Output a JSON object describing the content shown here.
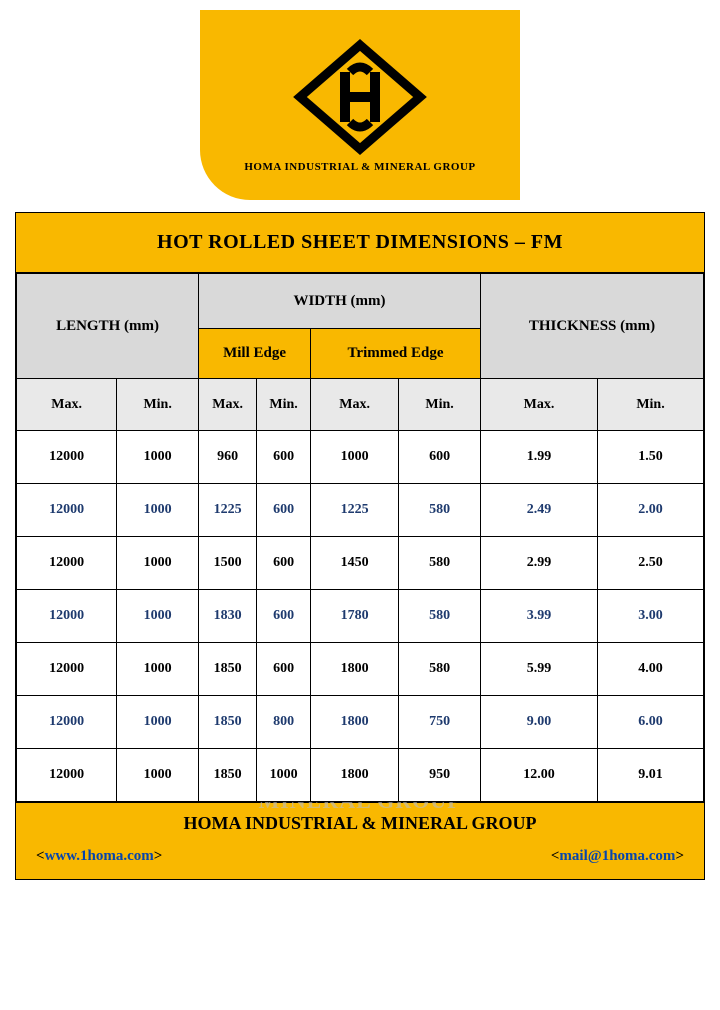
{
  "brand": {
    "name": "HOMA INDUSTRIAL & MINERAL GROUP",
    "logo_bg": "#f9b800",
    "logo_stroke": "#000000"
  },
  "title": "HOT ROLLED SHEET DIMENSIONS – FM",
  "headers": {
    "length": "LENGTH (mm)",
    "width": "WIDTH (mm)",
    "thickness": "THICKNESS (mm)",
    "mill_edge": "Mill Edge",
    "trimmed_edge": "Trimmed Edge",
    "max": "Max.",
    "min": "Min."
  },
  "colors": {
    "yellow": "#f9b800",
    "gray_header": "#d9d9d9",
    "gray_sub": "#e9e9e9",
    "alt_text": "#1e3a6e",
    "link": "#0645ad",
    "border": "#000000"
  },
  "rows": [
    {
      "len_max": "12000",
      "len_min": "1000",
      "mill_max": "960",
      "mill_min": "600",
      "trim_max": "1000",
      "trim_min": "600",
      "th_max": "1.99",
      "th_min": "1.50"
    },
    {
      "len_max": "12000",
      "len_min": "1000",
      "mill_max": "1225",
      "mill_min": "600",
      "trim_max": "1225",
      "trim_min": "580",
      "th_max": "2.49",
      "th_min": "2.00"
    },
    {
      "len_max": "12000",
      "len_min": "1000",
      "mill_max": "1500",
      "mill_min": "600",
      "trim_max": "1450",
      "trim_min": "580",
      "th_max": "2.99",
      "th_min": "2.50"
    },
    {
      "len_max": "12000",
      "len_min": "1000",
      "mill_max": "1830",
      "mill_min": "600",
      "trim_max": "1780",
      "trim_min": "580",
      "th_max": "3.99",
      "th_min": "3.00"
    },
    {
      "len_max": "12000",
      "len_min": "1000",
      "mill_max": "1850",
      "mill_min": "600",
      "trim_max": "1800",
      "trim_min": "580",
      "th_max": "5.99",
      "th_min": "4.00"
    },
    {
      "len_max": "12000",
      "len_min": "1000",
      "mill_max": "1850",
      "mill_min": "800",
      "trim_max": "1800",
      "trim_min": "750",
      "th_max": "9.00",
      "th_min": "6.00"
    },
    {
      "len_max": "12000",
      "len_min": "1000",
      "mill_max": "1850",
      "mill_min": "1000",
      "trim_max": "1800",
      "trim_min": "950",
      "th_max": "12.00",
      "th_min": "9.01"
    }
  ],
  "footer": {
    "company": "HOMA INDUSTRIAL & MINERAL GROUP",
    "website": "www.1homa.com",
    "email": "mail@1homa.com"
  },
  "watermark_text": "HOMA INDUSTRIAL & MINERAL GROUP"
}
